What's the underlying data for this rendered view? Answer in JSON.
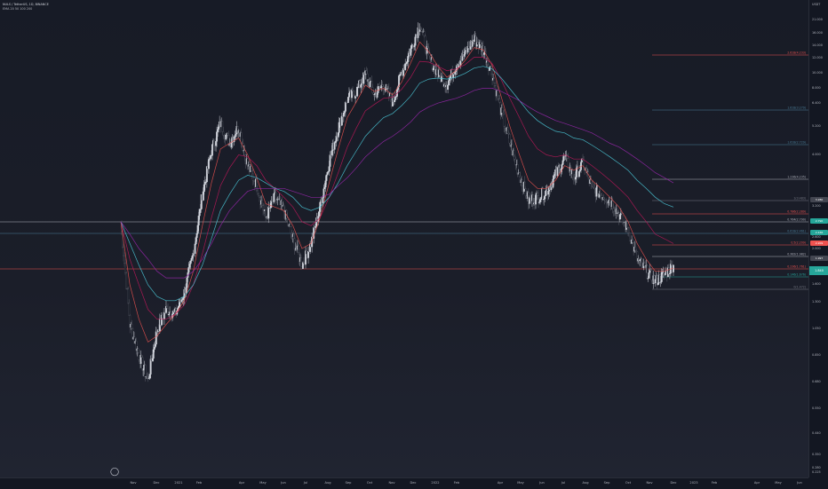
{
  "header": {
    "symbol_line": "NULS / TetherUS, 1D, BINANCE",
    "indicator_line": "EMA 20 50 100 200"
  },
  "price_axis": {
    "currency": "USDT",
    "ticks": [
      "21.000",
      "16.000",
      "14.000",
      "12.000",
      "10.000",
      "8.000",
      "6.400",
      "5.200",
      "4.000",
      "3.200",
      "2.600",
      "2.000",
      "1.600",
      "1.300",
      "1.050",
      "0.850",
      "0.680",
      "0.550",
      "0.440",
      "0.350",
      "0.280",
      "0.225"
    ],
    "current_price": "1.840"
  },
  "time_axis": {
    "ticks": [
      "Nov",
      "Dec",
      "2021",
      "Feb",
      "Apr",
      "May",
      "Jun",
      "Jul",
      "Aug",
      "Sep",
      "Oct",
      "Nov",
      "Dec",
      "2022",
      "Feb",
      "Apr",
      "May",
      "Jun",
      "Jul",
      "Aug",
      "Sep",
      "Oct",
      "Nov",
      "Dec",
      "2023",
      "Feb",
      "Apr",
      "May",
      "Jun"
    ]
  },
  "fib_levels": [
    {
      "label": "2.618(4.233)",
      "color": "#ef5350"
    },
    {
      "label": "1.618(3.279)",
      "color": "#4a7f9a"
    },
    {
      "label": "1.618(2.729)",
      "color": "#4a7f9a"
    },
    {
      "label": "1.236(4.235)",
      "color": "#b2b5be"
    },
    {
      "label": "1(3.483)",
      "color": "#787b86"
    },
    {
      "label": "0.786(2.289)",
      "color": "#ef5350"
    },
    {
      "label": "0.764(2.790)",
      "color": "#b2b5be"
    },
    {
      "label": "0.618(2.461)",
      "color": "#4a7f9a"
    },
    {
      "label": "0.5(2.209)",
      "color": "#ef5350"
    },
    {
      "label": "0.382(1.982)",
      "color": "#b2b5be"
    },
    {
      "label": "0.236(1.761)",
      "color": "#ef5350"
    },
    {
      "label": "0.146(1.676)",
      "color": "#26a69a"
    },
    {
      "label": "0(1.472)",
      "color": "#787b86"
    }
  ],
  "badges": [
    {
      "text": "3.280",
      "color": "#434651"
    },
    {
      "text": "2.790",
      "color": "#26a69a"
    },
    {
      "text": "2.436",
      "color": "#26a69a"
    },
    {
      "text": "2.209",
      "color": "#ef5350"
    },
    {
      "text": "1.997",
      "color": "#434651"
    }
  ],
  "chart_data": {
    "type": "candlestick",
    "title": "NULS / TetherUS, 1D, BINANCE",
    "xlabel": "",
    "ylabel": "USDT",
    "y_scale": "log",
    "ylim": [
      0.22,
      22
    ],
    "grid": false,
    "series": [
      {
        "name": "NULS/USDT close",
        "color": "#26a69a",
        "values": [
          2.6,
          0.95,
          0.7,
          0.55,
          0.9,
          1.1,
          1.05,
          1.3,
          1.9,
          3.4,
          5.2,
          6.8,
          5.6,
          6.6,
          4.5,
          3.7,
          2.7,
          3.3,
          2.9,
          2.2,
          1.7,
          2.1,
          3.0,
          4.7,
          6.5,
          8.6,
          9.3,
          11.0,
          9.0,
          10.0,
          8.3,
          11.2,
          14.0,
          18.0,
          13.0,
          11.0,
          10.0,
          12.0,
          13.5,
          15.5,
          14.0,
          11.0,
          7.5,
          5.5,
          4.1,
          3.2,
          3.3,
          3.5,
          4.1,
          4.9,
          4.0,
          4.6,
          3.6,
          3.4,
          3.2,
          2.8,
          2.4,
          1.8,
          1.6,
          1.45,
          1.55,
          1.7
        ]
      },
      {
        "name": "EMA 20",
        "color": "#ef5350",
        "values": [
          2.6,
          1.4,
          1.0,
          0.8,
          0.85,
          0.95,
          1.05,
          1.2,
          1.6,
          2.5,
          3.8,
          5.3,
          5.6,
          5.9,
          5.0,
          4.0,
          3.1,
          3.0,
          2.9,
          2.5,
          2.0,
          2.1,
          2.7,
          3.8,
          5.3,
          7.2,
          8.4,
          9.9,
          9.3,
          9.6,
          9.0,
          10.2,
          12.3,
          15.1,
          13.7,
          11.9,
          10.7,
          11.4,
          12.6,
          14.3,
          14.0,
          12.0,
          8.8,
          6.5,
          5.0,
          3.9,
          3.6,
          3.6,
          3.9,
          4.5,
          4.3,
          4.5,
          3.9,
          3.6,
          3.3,
          3.0,
          2.6,
          2.1,
          1.8,
          1.6,
          1.6,
          1.65
        ]
      },
      {
        "name": "EMA 50",
        "color": "#c2185b",
        "values": [
          2.6,
          1.8,
          1.4,
          1.1,
          1.0,
          1.0,
          1.05,
          1.15,
          1.4,
          1.9,
          2.7,
          3.7,
          4.4,
          5.0,
          4.9,
          4.5,
          3.9,
          3.6,
          3.3,
          3.0,
          2.6,
          2.5,
          2.7,
          3.3,
          4.2,
          5.4,
          6.5,
          7.7,
          8.2,
          8.7,
          8.8,
          9.5,
          10.7,
          12.5,
          12.4,
          11.9,
          11.4,
          11.6,
          12.1,
          13.0,
          13.0,
          12.2,
          10.4,
          8.6,
          7.2,
          6.0,
          5.3,
          5.0,
          4.9,
          5.0,
          4.8,
          4.8,
          4.5,
          4.2,
          3.9,
          3.6,
          3.3,
          2.9,
          2.6,
          2.3,
          2.2,
          2.1
        ]
      },
      {
        "name": "EMA 100",
        "color": "#4dd0e1",
        "values": [
          2.6,
          2.1,
          1.7,
          1.4,
          1.25,
          1.2,
          1.2,
          1.25,
          1.4,
          1.7,
          2.2,
          2.9,
          3.4,
          3.9,
          4.1,
          4.0,
          3.8,
          3.6,
          3.5,
          3.3,
          3.0,
          2.9,
          3.0,
          3.3,
          3.8,
          4.5,
          5.2,
          6.0,
          6.6,
          7.2,
          7.5,
          8.1,
          8.9,
          10.1,
          10.5,
          10.6,
          10.5,
          10.7,
          11.1,
          11.7,
          11.9,
          11.6,
          10.6,
          9.5,
          8.5,
          7.6,
          7.0,
          6.6,
          6.3,
          6.2,
          5.9,
          5.8,
          5.5,
          5.2,
          4.9,
          4.6,
          4.3,
          3.9,
          3.6,
          3.3,
          3.1,
          3.0
        ]
      },
      {
        "name": "EMA 200",
        "color": "#9c27b0",
        "values": [
          2.6,
          2.3,
          2.0,
          1.8,
          1.6,
          1.5,
          1.5,
          1.5,
          1.6,
          1.8,
          2.1,
          2.5,
          2.9,
          3.2,
          3.5,
          3.6,
          3.6,
          3.6,
          3.6,
          3.5,
          3.4,
          3.3,
          3.3,
          3.4,
          3.7,
          4.0,
          4.4,
          4.9,
          5.3,
          5.7,
          6.0,
          6.4,
          6.9,
          7.6,
          8.0,
          8.3,
          8.5,
          8.7,
          9.0,
          9.4,
          9.6,
          9.6,
          9.3,
          8.9,
          8.5,
          8.0,
          7.6,
          7.3,
          7.0,
          6.8,
          6.6,
          6.4,
          6.2,
          5.9,
          5.6,
          5.4,
          5.1,
          4.8,
          4.5,
          4.2,
          4.0,
          3.8
        ]
      }
    ]
  }
}
